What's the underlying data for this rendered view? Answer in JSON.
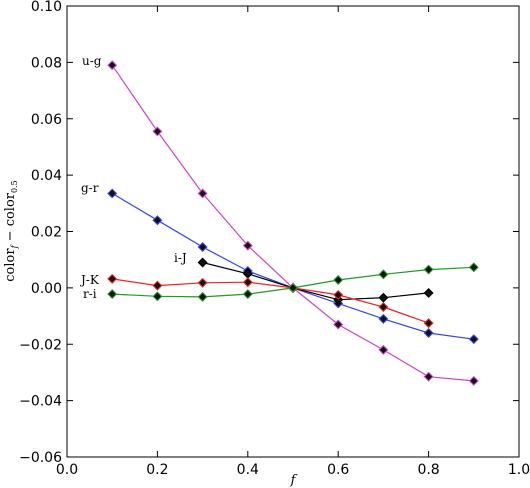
{
  "chart_data": {
    "type": "line",
    "xlabel": "f",
    "ylabel": {
      "base1": "color",
      "sub1": "f",
      "mid": " − color",
      "sub2": "0.5"
    },
    "xlim": [
      0.0,
      1.0
    ],
    "ylim": [
      -0.06,
      0.1
    ],
    "xticks": [
      "0.0",
      "0.2",
      "0.4",
      "0.6",
      "0.8",
      "1.0"
    ],
    "yticks": [
      "−0.06",
      "−0.04",
      "−0.02",
      "0.00",
      "0.02",
      "0.04",
      "0.06",
      "0.08",
      "0.10"
    ],
    "grid": false,
    "marker": "diamond",
    "series": [
      {
        "name": "u-g",
        "color": "#cc44cc",
        "x": [
          0.1,
          0.2,
          0.3,
          0.4,
          0.5,
          0.6,
          0.7,
          0.8,
          0.9
        ],
        "y": [
          0.079,
          0.0555,
          0.0335,
          0.015,
          0.0,
          -0.013,
          -0.022,
          -0.0315,
          -0.033
        ]
      },
      {
        "name": "g-r",
        "color": "#3344ee",
        "x": [
          0.1,
          0.2,
          0.3,
          0.4,
          0.5,
          0.6,
          0.7,
          0.8,
          0.9
        ],
        "y": [
          0.0335,
          0.024,
          0.0145,
          0.006,
          0.0,
          -0.0055,
          -0.011,
          -0.016,
          -0.0182
        ]
      },
      {
        "name": "i-J",
        "color": "#000000",
        "x": [
          0.3,
          0.4,
          0.5,
          0.6,
          0.7,
          0.8
        ],
        "y": [
          0.009,
          0.005,
          0.0,
          -0.0042,
          -0.0035,
          -0.0018
        ]
      },
      {
        "name": "J-K",
        "color": "#ee2222",
        "x": [
          0.1,
          0.2,
          0.3,
          0.4,
          0.5,
          0.6,
          0.7,
          0.8
        ],
        "y": [
          0.0032,
          0.0008,
          0.0018,
          0.002,
          0.0,
          -0.0025,
          -0.0068,
          -0.0125
        ]
      },
      {
        "name": "r-i",
        "color": "#229922",
        "x": [
          0.1,
          0.2,
          0.3,
          0.4,
          0.5,
          0.6,
          0.7,
          0.8,
          0.9
        ],
        "y": [
          -0.0022,
          -0.003,
          -0.0032,
          -0.0022,
          0.0,
          0.0028,
          0.0048,
          0.0065,
          0.0073
        ]
      }
    ]
  }
}
